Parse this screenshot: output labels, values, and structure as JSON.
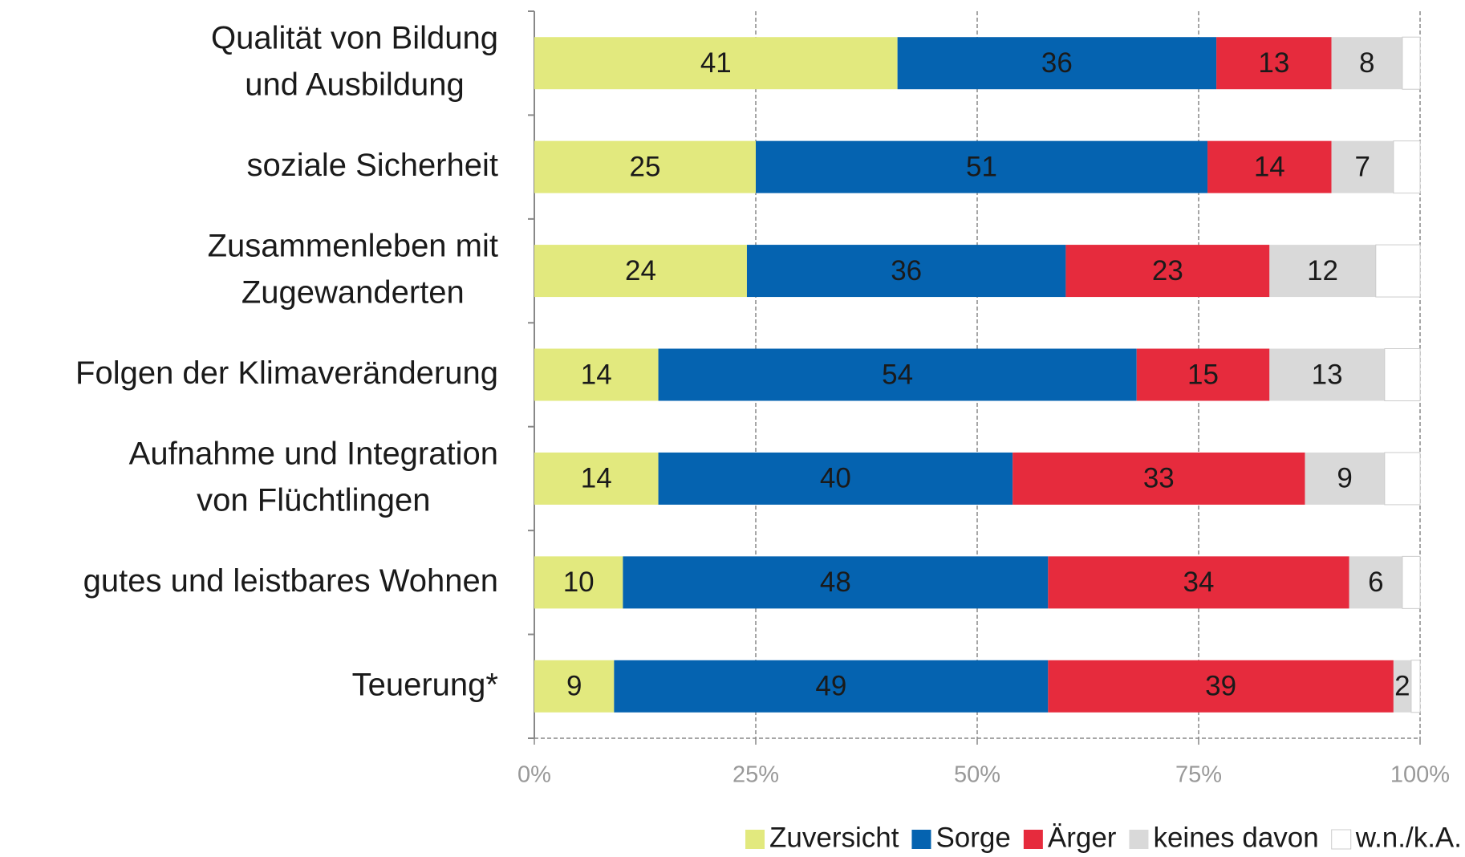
{
  "chart_data": {
    "type": "stacked-bar-horizontal",
    "categories": [
      "Qualität von Bildung\nund Ausbildung",
      "soziale Sicherheit",
      "Zusammenleben mit\nZugewanderten",
      "Folgen der Klimaveränderung",
      "Aufnahme und Integration\nvon Flüchtlingen",
      "gutes und leistbares Wohnen",
      "Teuerung*"
    ],
    "series": [
      {
        "name": "Zuversicht",
        "color": "#e2e97e",
        "values": [
          41,
          25,
          24,
          14,
          14,
          10,
          9
        ]
      },
      {
        "name": "Sorge",
        "color": "#0563b0",
        "values": [
          36,
          51,
          36,
          54,
          40,
          48,
          49
        ]
      },
      {
        "name": "Ärger",
        "color": "#e62b3d",
        "values": [
          13,
          14,
          23,
          15,
          33,
          34,
          39
        ]
      },
      {
        "name": "keines davon",
        "color": "#d9d9d9",
        "values": [
          8,
          7,
          12,
          13,
          9,
          6,
          2
        ]
      },
      {
        "name": "w.n./k.A.",
        "color": "#ffffff",
        "values": [
          2,
          3,
          5,
          4,
          4,
          2,
          1
        ]
      }
    ],
    "xlim": [
      0,
      100
    ],
    "xticks": [
      {
        "value": 0,
        "label": "0%"
      },
      {
        "value": 25,
        "label": "25%"
      },
      {
        "value": 50,
        "label": "50%"
      },
      {
        "value": 75,
        "label": "75%"
      },
      {
        "value": 100,
        "label": "100%"
      }
    ],
    "grid": true,
    "legend": "bottom-right"
  }
}
